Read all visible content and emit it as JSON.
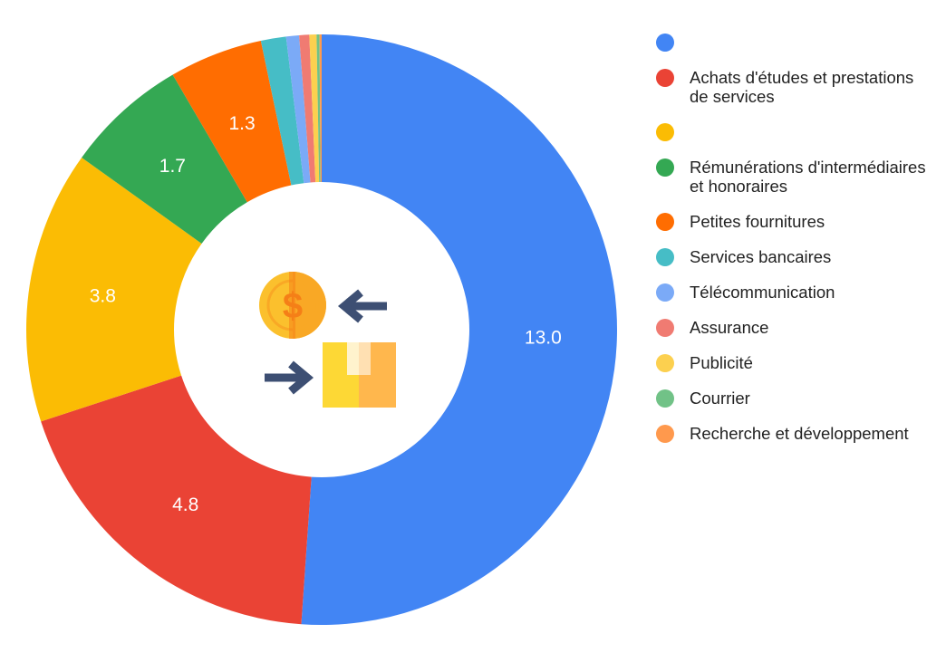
{
  "chart_data": {
    "type": "pie",
    "donut": true,
    "legend_position": "right",
    "slices": [
      {
        "label": "",
        "value": 13.0,
        "value_label": "13.0",
        "color": "#4285f4"
      },
      {
        "label": "Achats d'études et prestations de services",
        "value": 4.8,
        "value_label": "4.8",
        "color": "#ea4335"
      },
      {
        "label": "",
        "value": 3.8,
        "value_label": "3.8",
        "color": "#fbbc04"
      },
      {
        "label": "Rémunérations d'intermédiaires et honoraires",
        "value": 1.7,
        "value_label": "1.7",
        "color": "#34a853"
      },
      {
        "label": "Petites fournitures",
        "value": 1.3,
        "value_label": "1.3",
        "color": "#ff6d01"
      },
      {
        "label": "Services bancaires",
        "value": 0.35,
        "value_label": "",
        "color": "#46bdc6"
      },
      {
        "label": "Télécommunication",
        "value": 0.18,
        "value_label": "",
        "color": "#7baaf7"
      },
      {
        "label": "Assurance",
        "value": 0.14,
        "value_label": "",
        "color": "#f07b72"
      },
      {
        "label": "Publicité",
        "value": 0.1,
        "value_label": "",
        "color": "#fcd04f"
      },
      {
        "label": "Courrier",
        "value": 0.04,
        "value_label": "",
        "color": "#71c287"
      },
      {
        "label": "Recherche et développement",
        "value": 0.03,
        "value_label": "",
        "color": "#ff994d"
      }
    ]
  },
  "center_icons": [
    {
      "name": "coin-icon",
      "color": "#fbc02d"
    },
    {
      "name": "arrow-left-icon",
      "color": "#3d4f73"
    },
    {
      "name": "arrow-right-icon",
      "color": "#3d4f73"
    },
    {
      "name": "box-icon",
      "color": "#fdd835"
    }
  ]
}
